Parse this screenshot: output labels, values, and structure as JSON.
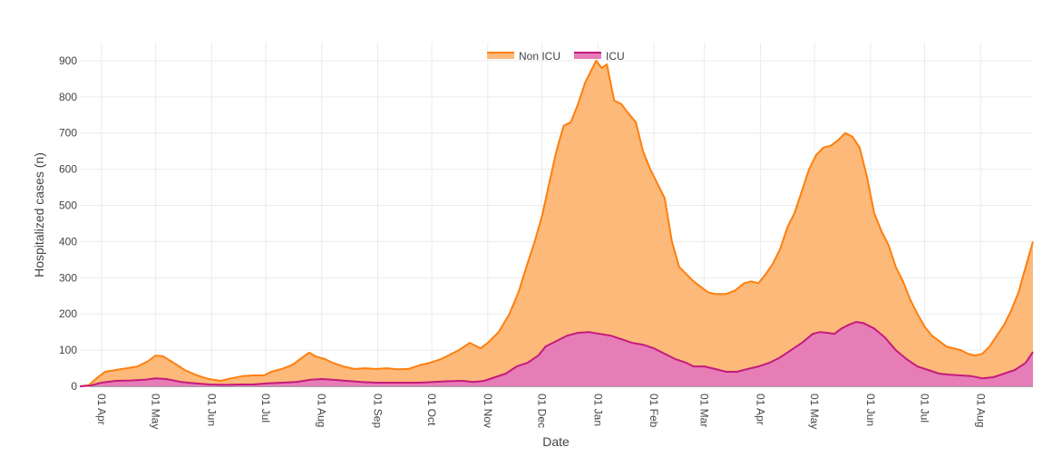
{
  "chart_data": {
    "type": "area",
    "title": "",
    "xlabel": "Date",
    "ylabel": "Hospitalized cases (n)",
    "ylim": [
      0,
      950
    ],
    "y_ticks": [
      0,
      100,
      200,
      300,
      400,
      500,
      600,
      700,
      800,
      900
    ],
    "x_range_days": [
      0,
      528
    ],
    "x_ticks": [
      {
        "day": 12,
        "label": "01 Apr"
      },
      {
        "day": 42,
        "label": "01 May"
      },
      {
        "day": 73,
        "label": "01 Jun"
      },
      {
        "day": 103,
        "label": "01 Jul"
      },
      {
        "day": 134,
        "label": "01 Aug"
      },
      {
        "day": 165,
        "label": "01 Sep"
      },
      {
        "day": 195,
        "label": "01 Oct"
      },
      {
        "day": 226,
        "label": "01 Nov"
      },
      {
        "day": 256,
        "label": "01 Dec"
      },
      {
        "day": 287,
        "label": "01 Jan"
      },
      {
        "day": 318,
        "label": "01 Feb"
      },
      {
        "day": 346,
        "label": "01 Mar"
      },
      {
        "day": 377,
        "label": "01 Apr"
      },
      {
        "day": 407,
        "label": "01 May"
      },
      {
        "day": 438,
        "label": "01 Jun"
      },
      {
        "day": 468,
        "label": "01 Jul"
      },
      {
        "day": 499,
        "label": "01 Aug"
      }
    ],
    "grid": true,
    "legend_position": "top-center",
    "series": [
      {
        "name": "Non ICU",
        "line_color": "#ff7f0e",
        "fill_color": "#fdb97a",
        "stacked_total": [
          [
            0,
            0
          ],
          [
            5,
            3
          ],
          [
            10,
            25
          ],
          [
            14,
            40
          ],
          [
            20,
            45
          ],
          [
            26,
            50
          ],
          [
            32,
            55
          ],
          [
            38,
            70
          ],
          [
            42,
            85
          ],
          [
            46,
            83
          ],
          [
            52,
            65
          ],
          [
            58,
            45
          ],
          [
            64,
            32
          ],
          [
            70,
            22
          ],
          [
            74,
            18
          ],
          [
            78,
            15
          ],
          [
            84,
            22
          ],
          [
            90,
            28
          ],
          [
            96,
            30
          ],
          [
            102,
            30
          ],
          [
            106,
            40
          ],
          [
            112,
            48
          ],
          [
            118,
            60
          ],
          [
            122,
            75
          ],
          [
            127,
            93
          ],
          [
            131,
            82
          ],
          [
            136,
            75
          ],
          [
            140,
            65
          ],
          [
            146,
            55
          ],
          [
            152,
            48
          ],
          [
            158,
            50
          ],
          [
            164,
            48
          ],
          [
            170,
            50
          ],
          [
            176,
            47
          ],
          [
            182,
            48
          ],
          [
            188,
            58
          ],
          [
            194,
            65
          ],
          [
            200,
            75
          ],
          [
            206,
            90
          ],
          [
            210,
            100
          ],
          [
            216,
            120
          ],
          [
            222,
            105
          ],
          [
            226,
            120
          ],
          [
            232,
            150
          ],
          [
            238,
            200
          ],
          [
            243,
            260
          ],
          [
            248,
            340
          ],
          [
            252,
            400
          ],
          [
            256,
            470
          ],
          [
            260,
            560
          ],
          [
            264,
            650
          ],
          [
            268,
            720
          ],
          [
            272,
            730
          ],
          [
            276,
            780
          ],
          [
            280,
            840
          ],
          [
            283,
            870
          ],
          [
            286,
            900
          ],
          [
            289,
            880
          ],
          [
            292,
            890
          ],
          [
            296,
            790
          ],
          [
            300,
            780
          ],
          [
            303,
            760
          ],
          [
            308,
            730
          ],
          [
            312,
            650
          ],
          [
            316,
            600
          ],
          [
            320,
            560
          ],
          [
            324,
            520
          ],
          [
            328,
            400
          ],
          [
            332,
            330
          ],
          [
            336,
            310
          ],
          [
            340,
            290
          ],
          [
            344,
            275
          ],
          [
            348,
            260
          ],
          [
            352,
            255
          ],
          [
            358,
            255
          ],
          [
            363,
            265
          ],
          [
            368,
            285
          ],
          [
            372,
            290
          ],
          [
            376,
            285
          ],
          [
            380,
            310
          ],
          [
            384,
            340
          ],
          [
            388,
            380
          ],
          [
            392,
            440
          ],
          [
            396,
            480
          ],
          [
            400,
            540
          ],
          [
            404,
            600
          ],
          [
            408,
            640
          ],
          [
            412,
            660
          ],
          [
            416,
            665
          ],
          [
            420,
            680
          ],
          [
            424,
            700
          ],
          [
            428,
            690
          ],
          [
            432,
            660
          ],
          [
            436,
            580
          ],
          [
            440,
            480
          ],
          [
            444,
            430
          ],
          [
            448,
            390
          ],
          [
            452,
            330
          ],
          [
            456,
            290
          ],
          [
            460,
            240
          ],
          [
            464,
            200
          ],
          [
            468,
            165
          ],
          [
            472,
            140
          ],
          [
            476,
            125
          ],
          [
            480,
            110
          ],
          [
            484,
            105
          ],
          [
            488,
            100
          ],
          [
            492,
            90
          ],
          [
            496,
            85
          ],
          [
            500,
            90
          ],
          [
            504,
            110
          ],
          [
            508,
            140
          ],
          [
            512,
            170
          ],
          [
            516,
            210
          ],
          [
            520,
            260
          ],
          [
            524,
            330
          ],
          [
            528,
            400
          ]
        ]
      },
      {
        "name": "ICU",
        "line_color": "#c51b7d",
        "fill_color": "#e67db7",
        "values": [
          [
            0,
            0
          ],
          [
            6,
            2
          ],
          [
            12,
            10
          ],
          [
            20,
            15
          ],
          [
            28,
            16
          ],
          [
            36,
            18
          ],
          [
            42,
            22
          ],
          [
            48,
            20
          ],
          [
            56,
            12
          ],
          [
            64,
            8
          ],
          [
            72,
            5
          ],
          [
            80,
            4
          ],
          [
            88,
            5
          ],
          [
            96,
            5
          ],
          [
            104,
            8
          ],
          [
            112,
            10
          ],
          [
            120,
            12
          ],
          [
            128,
            18
          ],
          [
            134,
            20
          ],
          [
            140,
            18
          ],
          [
            148,
            15
          ],
          [
            156,
            12
          ],
          [
            164,
            10
          ],
          [
            172,
            10
          ],
          [
            180,
            10
          ],
          [
            188,
            10
          ],
          [
            196,
            12
          ],
          [
            204,
            14
          ],
          [
            212,
            15
          ],
          [
            218,
            12
          ],
          [
            224,
            15
          ],
          [
            230,
            25
          ],
          [
            236,
            35
          ],
          [
            242,
            55
          ],
          [
            248,
            65
          ],
          [
            254,
            85
          ],
          [
            258,
            110
          ],
          [
            264,
            125
          ],
          [
            270,
            140
          ],
          [
            276,
            148
          ],
          [
            282,
            150
          ],
          [
            288,
            145
          ],
          [
            294,
            140
          ],
          [
            300,
            130
          ],
          [
            306,
            120
          ],
          [
            312,
            115
          ],
          [
            318,
            105
          ],
          [
            324,
            90
          ],
          [
            330,
            75
          ],
          [
            336,
            65
          ],
          [
            340,
            55
          ],
          [
            346,
            55
          ],
          [
            352,
            48
          ],
          [
            358,
            40
          ],
          [
            364,
            40
          ],
          [
            370,
            48
          ],
          [
            376,
            55
          ],
          [
            382,
            65
          ],
          [
            388,
            80
          ],
          [
            394,
            100
          ],
          [
            400,
            120
          ],
          [
            406,
            145
          ],
          [
            410,
            150
          ],
          [
            414,
            148
          ],
          [
            418,
            145
          ],
          [
            422,
            160
          ],
          [
            426,
            170
          ],
          [
            430,
            178
          ],
          [
            434,
            175
          ],
          [
            440,
            160
          ],
          [
            446,
            135
          ],
          [
            452,
            100
          ],
          [
            458,
            75
          ],
          [
            464,
            55
          ],
          [
            470,
            45
          ],
          [
            476,
            35
          ],
          [
            482,
            32
          ],
          [
            488,
            30
          ],
          [
            494,
            28
          ],
          [
            500,
            22
          ],
          [
            506,
            25
          ],
          [
            512,
            35
          ],
          [
            518,
            45
          ],
          [
            524,
            65
          ],
          [
            528,
            95
          ]
        ]
      }
    ]
  }
}
